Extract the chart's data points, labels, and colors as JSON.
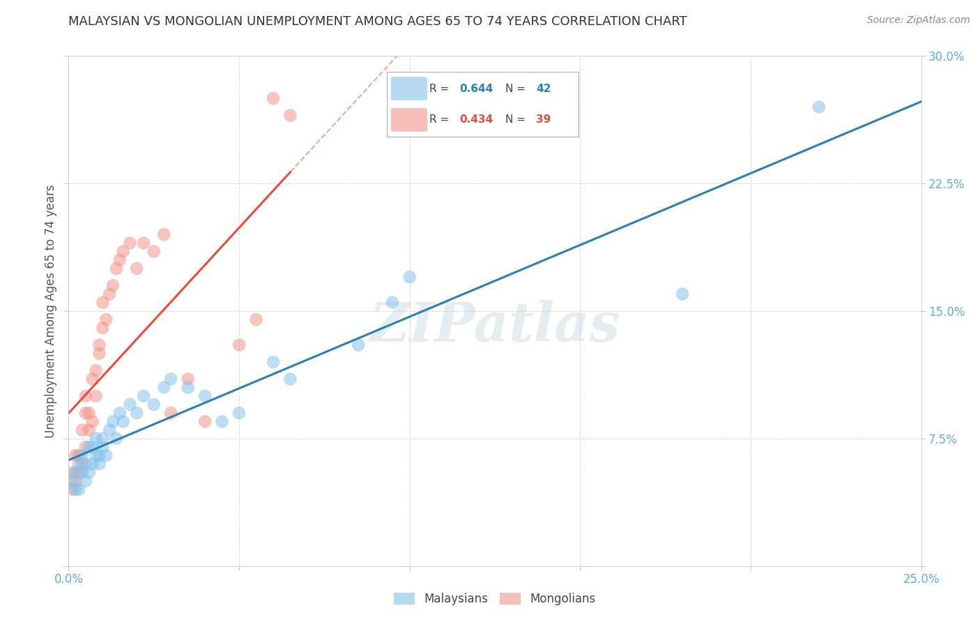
{
  "title": "MALAYSIAN VS MONGOLIAN UNEMPLOYMENT AMONG AGES 65 TO 74 YEARS CORRELATION CHART",
  "source": "Source: ZipAtlas.com",
  "ylabel": "Unemployment Among Ages 65 to 74 years",
  "xlim": [
    0.0,
    0.25
  ],
  "ylim": [
    0.0,
    0.3
  ],
  "xticks": [
    0.0,
    0.05,
    0.1,
    0.15,
    0.2,
    0.25
  ],
  "yticks": [
    0.0,
    0.075,
    0.15,
    0.225,
    0.3
  ],
  "legend_r_malaysian": "0.644",
  "legend_n_malaysian": "42",
  "legend_r_mongolian": "0.434",
  "legend_n_mongolian": "39",
  "malaysian_color": "#85c1e9",
  "mongolian_color": "#f1948a",
  "malaysian_line_color": "#2980b9",
  "mongolian_line_color": "#e74c3c",
  "watermark": "ZIPatlas",
  "background_color": "#ffffff",
  "grid_color": "#d5d8dc",
  "malaysian_x": [
    0.001,
    0.002,
    0.002,
    0.003,
    0.003,
    0.004,
    0.004,
    0.005,
    0.005,
    0.006,
    0.006,
    0.007,
    0.007,
    0.008,
    0.008,
    0.009,
    0.009,
    0.01,
    0.01,
    0.011,
    0.012,
    0.013,
    0.014,
    0.015,
    0.016,
    0.018,
    0.02,
    0.022,
    0.025,
    0.028,
    0.03,
    0.035,
    0.04,
    0.045,
    0.05,
    0.06,
    0.065,
    0.085,
    0.095,
    0.1,
    0.18,
    0.22
  ],
  "malaysian_y": [
    0.05,
    0.045,
    0.055,
    0.045,
    0.06,
    0.055,
    0.065,
    0.05,
    0.06,
    0.055,
    0.07,
    0.06,
    0.07,
    0.065,
    0.075,
    0.06,
    0.065,
    0.07,
    0.075,
    0.065,
    0.08,
    0.085,
    0.075,
    0.09,
    0.085,
    0.095,
    0.09,
    0.1,
    0.095,
    0.105,
    0.11,
    0.105,
    0.1,
    0.085,
    0.09,
    0.12,
    0.11,
    0.13,
    0.155,
    0.17,
    0.16,
    0.27
  ],
  "mongolian_x": [
    0.001,
    0.001,
    0.002,
    0.002,
    0.003,
    0.003,
    0.004,
    0.004,
    0.005,
    0.005,
    0.005,
    0.006,
    0.006,
    0.007,
    0.007,
    0.008,
    0.008,
    0.009,
    0.009,
    0.01,
    0.01,
    0.011,
    0.012,
    0.013,
    0.014,
    0.015,
    0.016,
    0.018,
    0.02,
    0.022,
    0.025,
    0.028,
    0.03,
    0.035,
    0.04,
    0.05,
    0.055,
    0.06,
    0.065
  ],
  "mongolian_y": [
    0.045,
    0.055,
    0.05,
    0.065,
    0.055,
    0.065,
    0.06,
    0.08,
    0.07,
    0.09,
    0.1,
    0.08,
    0.09,
    0.085,
    0.11,
    0.1,
    0.115,
    0.125,
    0.13,
    0.14,
    0.155,
    0.145,
    0.16,
    0.165,
    0.175,
    0.18,
    0.185,
    0.19,
    0.175,
    0.19,
    0.185,
    0.195,
    0.09,
    0.11,
    0.085,
    0.13,
    0.145,
    0.275,
    0.265
  ]
}
